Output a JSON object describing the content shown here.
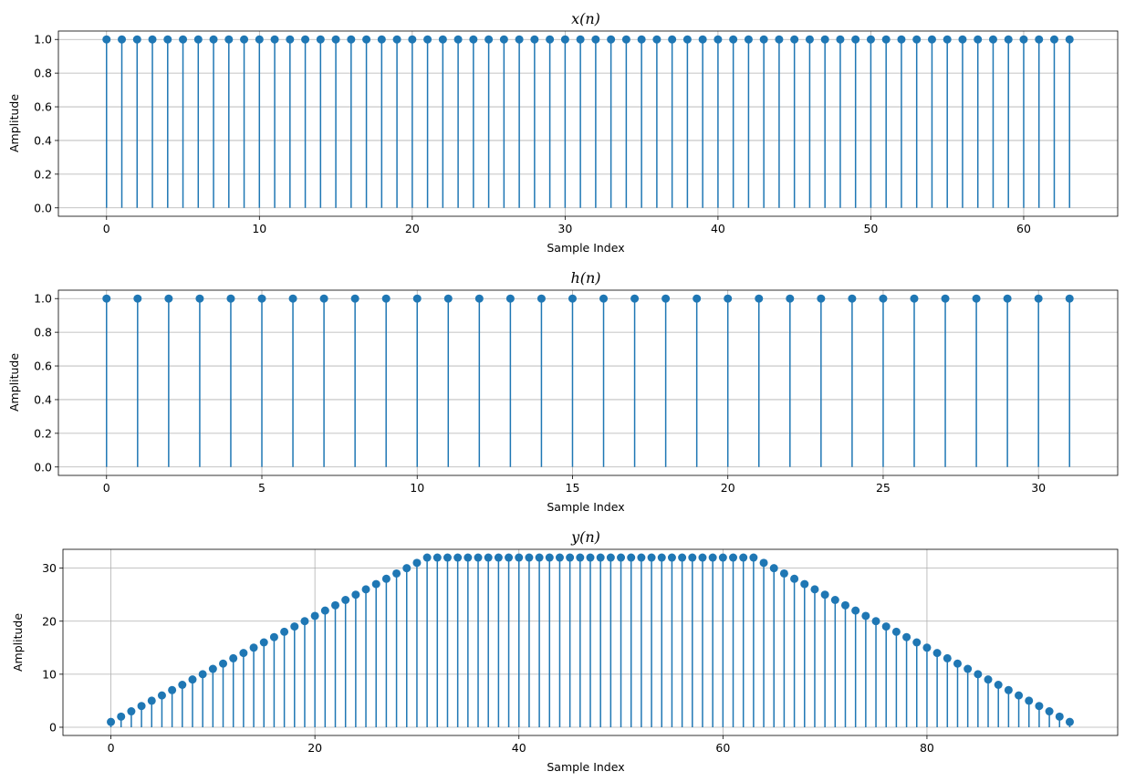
{
  "colors": {
    "stem": "#1f77b4",
    "grid": "#b0b0b0",
    "frame": "#000000"
  },
  "chart_data": [
    {
      "type": "stem",
      "title": "x(n)",
      "xlabel": "Sample Index",
      "ylabel": "Amplitude",
      "grid": true,
      "x": {
        "start": 0,
        "count": 64
      },
      "values": [
        1,
        1,
        1,
        1,
        1,
        1,
        1,
        1,
        1,
        1,
        1,
        1,
        1,
        1,
        1,
        1,
        1,
        1,
        1,
        1,
        1,
        1,
        1,
        1,
        1,
        1,
        1,
        1,
        1,
        1,
        1,
        1,
        1,
        1,
        1,
        1,
        1,
        1,
        1,
        1,
        1,
        1,
        1,
        1,
        1,
        1,
        1,
        1,
        1,
        1,
        1,
        1,
        1,
        1,
        1,
        1,
        1,
        1,
        1,
        1,
        1,
        1,
        1,
        1
      ],
      "xlim": [
        -3.15,
        66.15
      ],
      "ylim": [
        -0.05,
        1.05
      ],
      "xticks": [
        0,
        10,
        20,
        30,
        40,
        50,
        60
      ],
      "xtick_labels": [
        "0",
        "10",
        "20",
        "30",
        "40",
        "50",
        "60"
      ],
      "yticks": [
        0.0,
        0.2,
        0.4,
        0.6,
        0.8,
        1.0
      ],
      "ytick_labels": [
        "0.0",
        "0.2",
        "0.4",
        "0.6",
        "0.8",
        "1.0"
      ]
    },
    {
      "type": "stem",
      "title": "h(n)",
      "xlabel": "Sample Index",
      "ylabel": "Amplitude",
      "grid": true,
      "x": {
        "start": 0,
        "count": 32
      },
      "values": [
        1,
        1,
        1,
        1,
        1,
        1,
        1,
        1,
        1,
        1,
        1,
        1,
        1,
        1,
        1,
        1,
        1,
        1,
        1,
        1,
        1,
        1,
        1,
        1,
        1,
        1,
        1,
        1,
        1,
        1,
        1,
        1
      ],
      "xlim": [
        -1.55,
        32.55
      ],
      "ylim": [
        -0.05,
        1.05
      ],
      "xticks": [
        0,
        5,
        10,
        15,
        20,
        25,
        30
      ],
      "xtick_labels": [
        "0",
        "5",
        "10",
        "15",
        "20",
        "25",
        "30"
      ],
      "yticks": [
        0.0,
        0.2,
        0.4,
        0.6,
        0.8,
        1.0
      ],
      "ytick_labels": [
        "0.0",
        "0.2",
        "0.4",
        "0.6",
        "0.8",
        "1.0"
      ]
    },
    {
      "type": "stem",
      "title": "y(n)",
      "xlabel": "Sample Index",
      "ylabel": "Amplitude",
      "grid": true,
      "x": {
        "start": 0,
        "count": 95
      },
      "values": [
        1,
        2,
        3,
        4,
        5,
        6,
        7,
        8,
        9,
        10,
        11,
        12,
        13,
        14,
        15,
        16,
        17,
        18,
        19,
        20,
        21,
        22,
        23,
        24,
        25,
        26,
        27,
        28,
        29,
        30,
        31,
        32,
        32,
        32,
        32,
        32,
        32,
        32,
        32,
        32,
        32,
        32,
        32,
        32,
        32,
        32,
        32,
        32,
        32,
        32,
        32,
        32,
        32,
        32,
        32,
        32,
        32,
        32,
        32,
        32,
        32,
        32,
        32,
        32,
        31,
        30,
        29,
        28,
        27,
        26,
        25,
        24,
        23,
        22,
        21,
        20,
        19,
        18,
        17,
        16,
        15,
        14,
        13,
        12,
        11,
        10,
        9,
        8,
        7,
        6,
        5,
        4,
        3,
        2,
        1
      ],
      "xlim": [
        -4.7,
        98.7
      ],
      "ylim": [
        -1.55,
        33.55
      ],
      "xticks": [
        0,
        20,
        40,
        60,
        80
      ],
      "xtick_labels": [
        "0",
        "20",
        "40",
        "60",
        "80"
      ],
      "yticks": [
        0,
        10,
        20,
        30
      ],
      "ytick_labels": [
        "0",
        "10",
        "20",
        "30"
      ]
    }
  ]
}
